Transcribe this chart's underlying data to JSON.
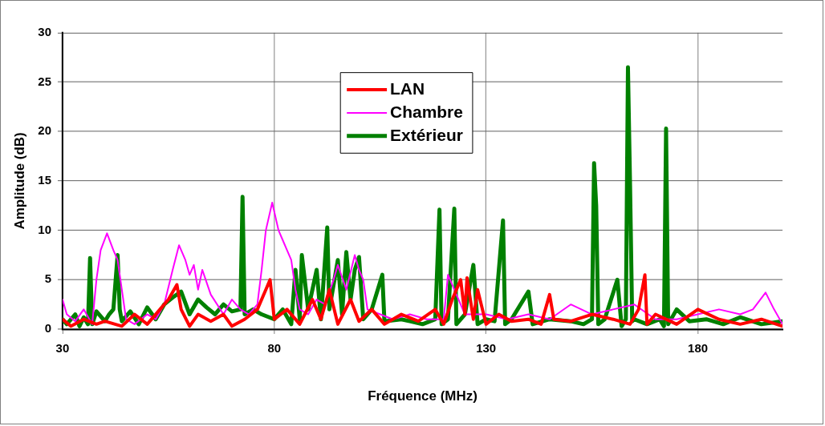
{
  "chart_data": {
    "type": "line",
    "xlabel": "Fréquence (MHz)",
    "ylabel": "Amplitude (dB)",
    "xlim": [
      30,
      200
    ],
    "xticks": [
      30,
      80,
      130,
      180
    ],
    "ylim": [
      0,
      30
    ],
    "yticks": [
      0,
      5,
      10,
      15,
      20,
      25,
      30
    ],
    "grid": true,
    "legend": "top",
    "series": [
      {
        "name": "LAN",
        "color": "#ff0000",
        "x": [
          30,
          32,
          35,
          38,
          40,
          44,
          47,
          50,
          53,
          55,
          57,
          58,
          60,
          62,
          65,
          68,
          70,
          73,
          76,
          78,
          79,
          80,
          83,
          86,
          89,
          91,
          93,
          95,
          98,
          100,
          103,
          106,
          110,
          114,
          118,
          120,
          122,
          124,
          125,
          125.5,
          127,
          128,
          130,
          133,
          136,
          140,
          143,
          145,
          146,
          150,
          155,
          160,
          164,
          166,
          167.5,
          168,
          170,
          175,
          180,
          185,
          190,
          195,
          200
        ],
        "values": [
          1,
          0.3,
          1,
          0.5,
          0.8,
          0.3,
          1.5,
          0.5,
          2,
          3,
          4.5,
          2,
          0.3,
          1.5,
          0.8,
          1.5,
          0.3,
          1,
          2,
          4,
          5,
          1,
          2,
          0.5,
          3,
          1,
          4,
          0.5,
          3,
          0.8,
          2,
          0.5,
          1.5,
          0.8,
          2,
          0.5,
          3,
          5,
          1.5,
          5.2,
          1,
          4,
          0.5,
          1.5,
          0.8,
          1,
          0.5,
          3.5,
          1,
          0.8,
          1.5,
          1,
          0.5,
          2,
          5.5,
          0.5,
          1.5,
          0.5,
          2,
          1,
          0.5,
          1,
          0.3
        ]
      },
      {
        "name": "Chambre",
        "color": "#ff00ff",
        "x": [
          30,
          31,
          33,
          35,
          37,
          38,
          39,
          40.5,
          42,
          43,
          44,
          45,
          47,
          50,
          52,
          54,
          56,
          57.5,
          59,
          60,
          61,
          62,
          63,
          65,
          68,
          70,
          72,
          74,
          76,
          77,
          78,
          79.5,
          81,
          82,
          83,
          84,
          85,
          86,
          88,
          90,
          92,
          94,
          95,
          97,
          99,
          100,
          101,
          102,
          105,
          108,
          112,
          116,
          120,
          121,
          125,
          130,
          135,
          140,
          145,
          150,
          155,
          160,
          165,
          170,
          175,
          180,
          185,
          190,
          193,
          196,
          198,
          200
        ],
        "values": [
          3,
          1.5,
          0.8,
          2,
          0.5,
          5,
          8,
          9.7,
          8,
          7,
          4,
          1,
          0.5,
          1.5,
          1,
          2.5,
          6,
          8.5,
          7,
          5.5,
          6.5,
          4,
          6,
          3.5,
          1.5,
          3,
          2,
          1.5,
          2.5,
          6,
          10,
          12.8,
          10,
          9,
          8,
          7,
          4,
          2,
          1.5,
          3,
          2.5,
          5,
          6.5,
          4,
          7.5,
          6,
          5,
          2,
          1.5,
          1,
          1.5,
          1,
          1,
          5.5,
          1.5,
          1.5,
          1,
          1.5,
          1,
          2.5,
          1.5,
          2,
          2.5,
          1,
          1,
          1.5,
          2,
          1.5,
          2,
          3.7,
          2,
          0.5
        ]
      },
      {
        "name": "Extérieur",
        "color": "#008000",
        "x": [
          30,
          31,
          33,
          34,
          35,
          36,
          36.5,
          37,
          38,
          40,
          41,
          42,
          43,
          43.5,
          44,
          46,
          48,
          50,
          52,
          54,
          56,
          58,
          60,
          62,
          64,
          66,
          68,
          70,
          72,
          72.5,
          73,
          75,
          77,
          80,
          82,
          84,
          85,
          86,
          86.5,
          88,
          90,
          91,
          92.5,
          93,
          95,
          96,
          97,
          98,
          99,
          100,
          101,
          103,
          105.5,
          106,
          110,
          115,
          118,
          119,
          119.5,
          121,
          122.5,
          123,
          125,
          127,
          128,
          130,
          132,
          134,
          134.5,
          136,
          140,
          141,
          145,
          150,
          153,
          155,
          155.5,
          156,
          156.5,
          158,
          161,
          162,
          163,
          163.5,
          164,
          164.5,
          165,
          168,
          171,
          172,
          172.5,
          173,
          175,
          178,
          182,
          186,
          190,
          195,
          200
        ],
        "values": [
          1,
          0.5,
          1.5,
          0.3,
          1.2,
          0.5,
          7.2,
          0.5,
          1.8,
          0.8,
          1.5,
          2,
          7.5,
          2,
          0.8,
          1.8,
          0.5,
          2.2,
          1,
          2.5,
          3.2,
          3.8,
          1.5,
          3,
          2.2,
          1.5,
          2.5,
          1.8,
          2,
          13.4,
          1.5,
          2,
          1.5,
          1,
          2,
          0.5,
          6,
          1,
          7.5,
          2,
          6,
          1,
          10.3,
          2,
          7,
          1.5,
          7.8,
          3,
          6,
          7.3,
          1,
          2,
          5.5,
          0.8,
          1,
          0.5,
          1,
          12.1,
          0.5,
          1,
          12.2,
          0.5,
          1.5,
          6.5,
          0.5,
          1,
          0.8,
          11,
          0.5,
          1,
          3.8,
          0.5,
          1,
          0.8,
          0.5,
          1,
          16.8,
          12.5,
          0.5,
          1,
          5,
          0.3,
          1,
          26.5,
          14.5,
          0.8,
          1,
          0.5,
          1,
          0.3,
          20.3,
          0.5,
          2,
          0.8,
          1,
          0.5,
          1.2,
          0.5,
          0.8
        ]
      }
    ]
  }
}
